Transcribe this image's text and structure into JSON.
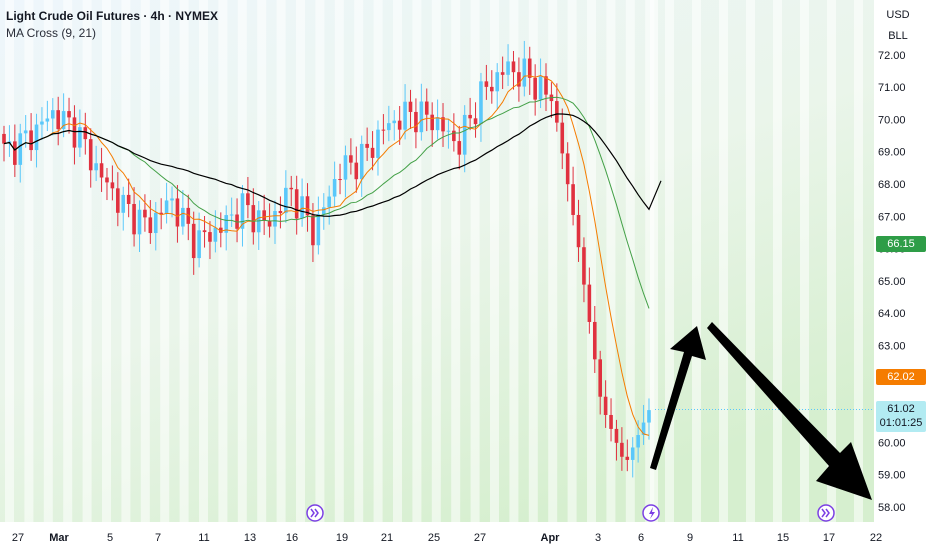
{
  "header": {
    "title": "Light Crude Oil Futures · 4h · NYMEX",
    "indicator": "MA Cross (9, 21)"
  },
  "price_axis": {
    "currency": "USD",
    "unit": "BLL"
  },
  "price_tags": {
    "ma_green": {
      "text": "66.15",
      "value": 66.15,
      "color": "#2e9d47"
    },
    "ma_orange": {
      "text": "62.02",
      "value": 62.02,
      "color": "#f57c00"
    },
    "last": {
      "text": "61.02",
      "countdown": "01:01:25",
      "value": 61.02,
      "color": "#b2ebf2"
    }
  },
  "colors": {
    "up": "#5ac8fa",
    "down": "#e0313f",
    "ma_fast": "#f57c00",
    "ma_slow": "#43a047",
    "ma_long": "#000000"
  },
  "chart_data": {
    "type": "candlestick",
    "title": "Light Crude Oil Futures · 4h · NYMEX",
    "ylim": [
      57.5,
      73
    ],
    "y_ticks": [
      58,
      59,
      60,
      61,
      62,
      63,
      64,
      65,
      66,
      67,
      68,
      69,
      70,
      71,
      72
    ],
    "x_ticks": [
      "27",
      "Mar",
      "5",
      "7",
      "11",
      "13",
      "16",
      "19",
      "21",
      "25",
      "27",
      "Apr",
      "3",
      "6",
      "9",
      "11",
      "15",
      "17",
      "22"
    ],
    "grid": false,
    "close_anchors": [
      {
        "x": "27",
        "close": 69.0
      },
      {
        "x": "27",
        "close": 69.4
      },
      {
        "x": "27",
        "close": 70.2
      },
      {
        "x": "Mar",
        "close": 69.7
      },
      {
        "x": "Mar",
        "close": 68.3
      },
      {
        "x": "5",
        "close": 67.3
      },
      {
        "x": "7",
        "close": 66.7
      },
      {
        "x": "7",
        "close": 67.5
      },
      {
        "x": "11",
        "close": 66.2
      },
      {
        "x": "11",
        "close": 66.6
      },
      {
        "x": "13",
        "close": 67.3
      },
      {
        "x": "16",
        "close": 66.7
      },
      {
        "x": "16",
        "close": 67.8
      },
      {
        "x": "19",
        "close": 66.5
      },
      {
        "x": "21",
        "close": 68.4
      },
      {
        "x": "21",
        "close": 68.8
      },
      {
        "x": "25",
        "close": 69.8
      },
      {
        "x": "25",
        "close": 70.2
      },
      {
        "x": "27",
        "close": 70.0
      },
      {
        "x": "27",
        "close": 69.2
      },
      {
        "x": "Apr",
        "close": 70.8
      },
      {
        "x": "Apr",
        "close": 71.6
      },
      {
        "x": "3",
        "close": 71.3
      },
      {
        "x": "3",
        "close": 70.5
      },
      {
        "x": "3",
        "close": 66.3
      },
      {
        "x": "6",
        "close": 61.2
      },
      {
        "x": "6",
        "close": 59.3
      },
      {
        "x": "6",
        "close": 61.0
      }
    ],
    "ma_long_end": 68.1,
    "annotations": [
      "up-arrow",
      "down-arrow"
    ],
    "events": [
      "forward-icon",
      "forward-icon",
      "lightning-icon"
    ]
  }
}
